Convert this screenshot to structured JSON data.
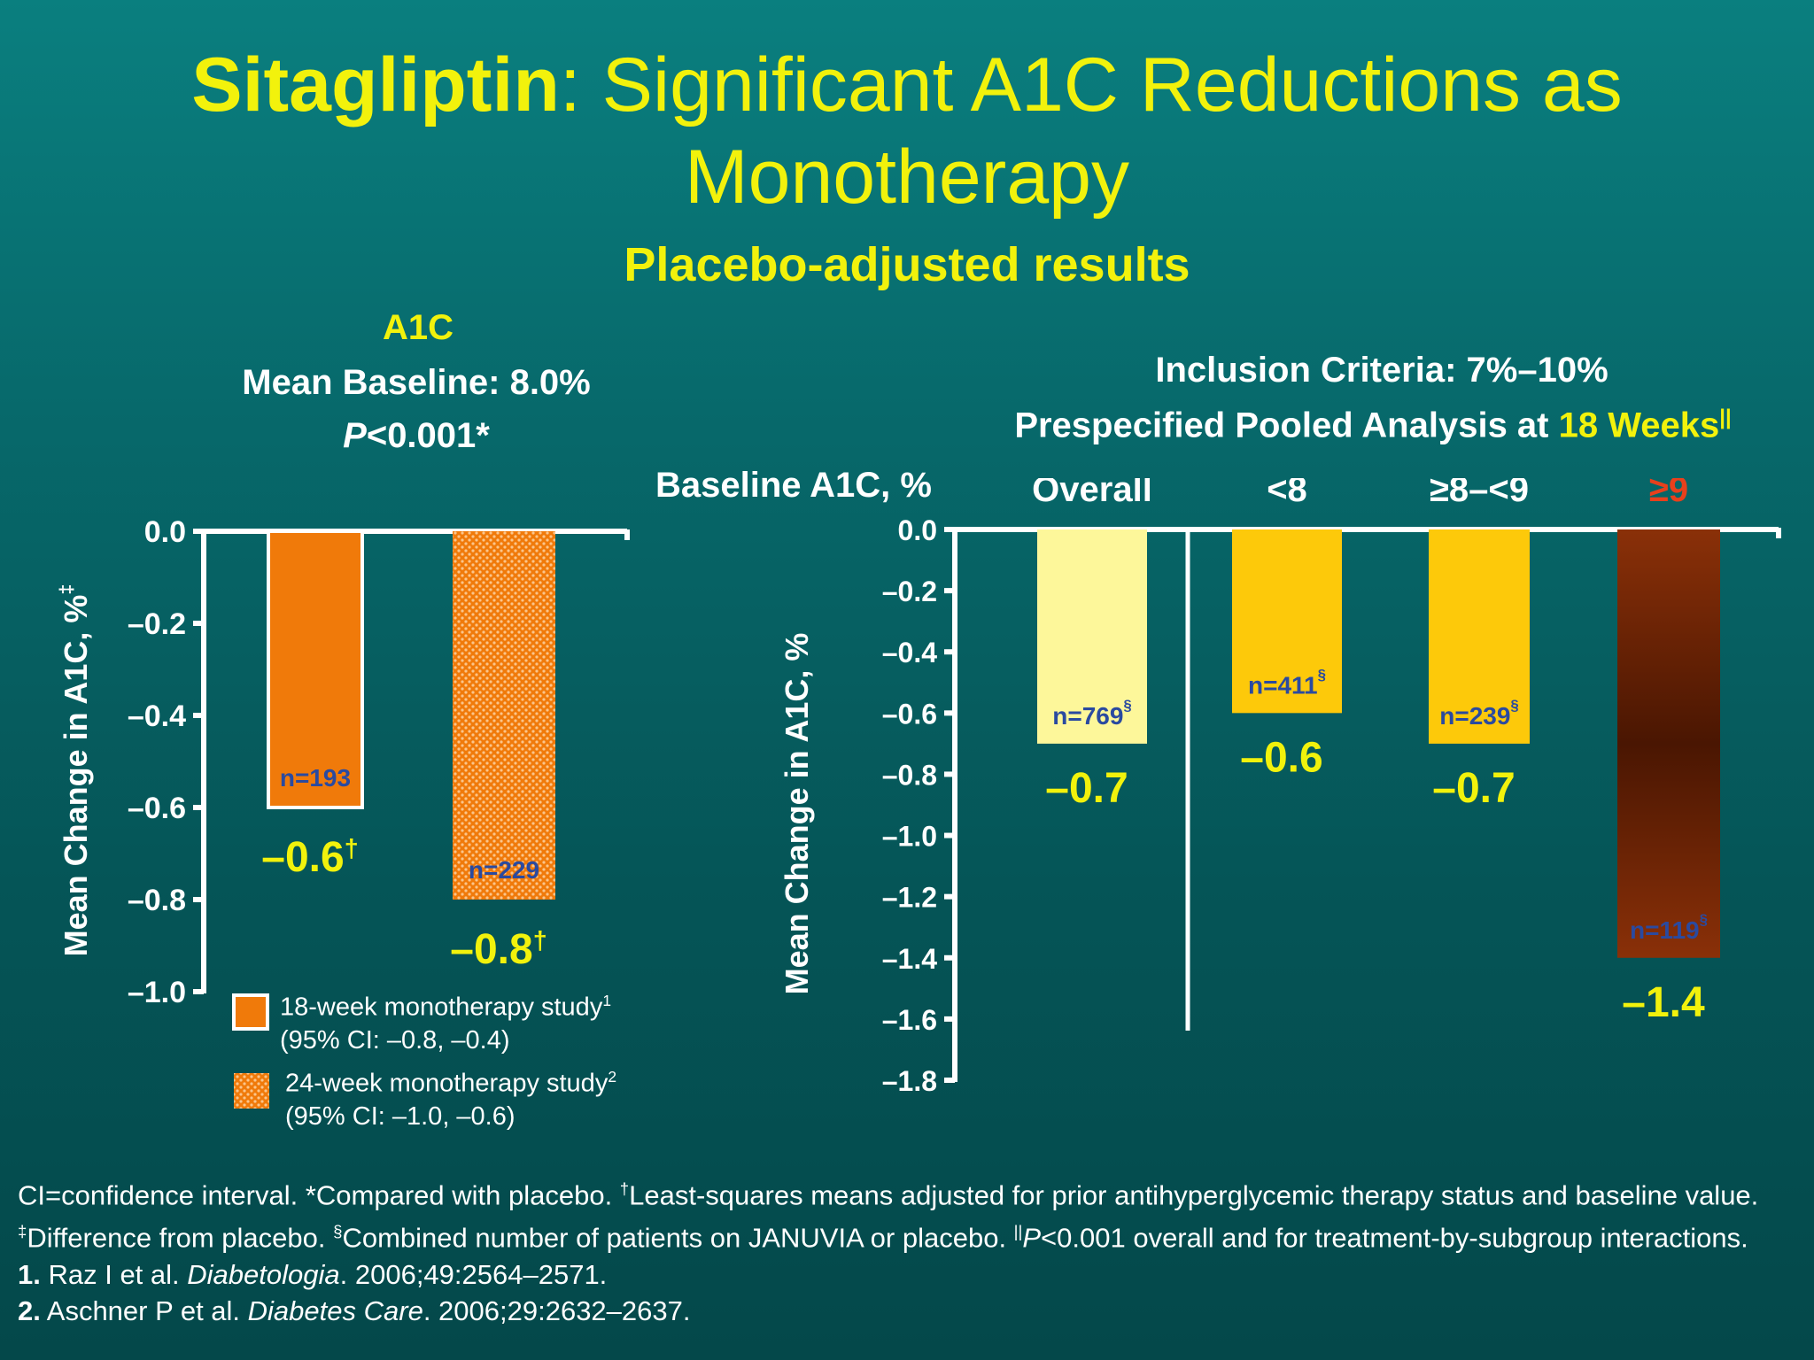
{
  "title": {
    "bold": "Sitagliptin",
    "rest": ": Significant A1C Reductions as Monotherapy"
  },
  "subtitle": "Placebo-adjusted results",
  "colors": {
    "title_yellow": "#f2f20c",
    "orange": "#f07a0a",
    "light_yellow": "#fdf79a",
    "gold": "#fdc90a",
    "dark_brown": "#4a1602",
    "label_blue": "#2a4aa0",
    "red": "#e8401c"
  },
  "left_panel": {
    "header": "A1C",
    "baseline": "Mean Baseline: 8.0%",
    "pvalue_italic": "P",
    "pvalue_rest": "<0.001*",
    "legend": [
      {
        "line1": "18-week monotherapy study",
        "sup": "1",
        "line2": "(95% CI: –0.8, –0.4)",
        "pattern": "solid"
      },
      {
        "line1": "24-week monotherapy study",
        "sup": "2",
        "line2": "(95% CI: –1.0, –0.6)",
        "pattern": "dotted"
      }
    ]
  },
  "right_panel": {
    "criteria": "Inclusion Criteria: 7%–10%",
    "pooled_prefix": "Prespecified Pooled Analysis at ",
    "pooled_highlight": "18 Weeks",
    "pooled_sup": "||",
    "baseline_label": "Baseline A1C, %"
  },
  "chart_data": [
    {
      "type": "bar",
      "categories": [
        "18-week monotherapy study",
        "24-week monotherapy study"
      ],
      "values": [
        -0.6,
        -0.8
      ],
      "n_labels": [
        "n=193",
        "n=229"
      ],
      "value_labels": [
        "–0.6",
        "–0.8"
      ],
      "value_sup": "†",
      "ylabel": "Mean Change in A1C, %",
      "ylabel_sup": "‡",
      "ylim": [
        -1.0,
        0.0
      ],
      "yticks": [
        0.0,
        -0.2,
        -0.4,
        -0.6,
        -0.8,
        -1.0
      ],
      "ytick_labels": [
        "0.0",
        "–0.2",
        "–0.4",
        "–0.6",
        "–0.8",
        "–1.0"
      ]
    },
    {
      "type": "bar",
      "categories": [
        "Overall",
        "<8",
        "≥8–<9",
        "≥9"
      ],
      "values": [
        -0.7,
        -0.6,
        -0.7,
        -1.4
      ],
      "n_labels": [
        "n=769",
        "n=411",
        "n=239",
        "n=119"
      ],
      "n_sup": "§",
      "value_labels": [
        "–0.7",
        "–0.6",
        "–0.7",
        "–1.4"
      ],
      "ylabel": "Mean Change in A1C, %",
      "ylim": [
        -1.8,
        0.0
      ],
      "yticks": [
        0.0,
        -0.2,
        -0.4,
        -0.6,
        -0.8,
        -1.0,
        -1.2,
        -1.4,
        -1.6,
        -1.8
      ],
      "ytick_labels": [
        "0.0",
        "–0.2",
        "–0.4",
        "–0.6",
        "–0.8",
        "–1.0",
        "–1.2",
        "–1.4",
        "–1.6",
        "–1.8"
      ]
    }
  ],
  "footnotes": {
    "f1": "CI=confidence interval. *Compared with placebo. ",
    "f1_sup": "†",
    "f2": "Least-squares means adjusted for prior antihyperglycemic therapy status and baseline value. ",
    "f2_sup": "‡",
    "f3": "Difference from placebo. ",
    "f3_sup": "§",
    "f4": "Combined number of patients on JANUVIA or placebo. ",
    "f4_sup": "||",
    "f4_italic": "P",
    "f5": "<0.001 overall and for treatment-by-subgroup interactions.",
    "ref1_num": "1.",
    "ref1_text": " Raz I et al. ",
    "ref1_journal": "Diabetologia",
    "ref1_rest": ". 2006;49:2564–2571.",
    "ref2_num": "2.",
    "ref2_text": " Aschner P et al. ",
    "ref2_journal": "Diabetes Care",
    "ref2_rest": ". 2006;29:2632–2637."
  }
}
